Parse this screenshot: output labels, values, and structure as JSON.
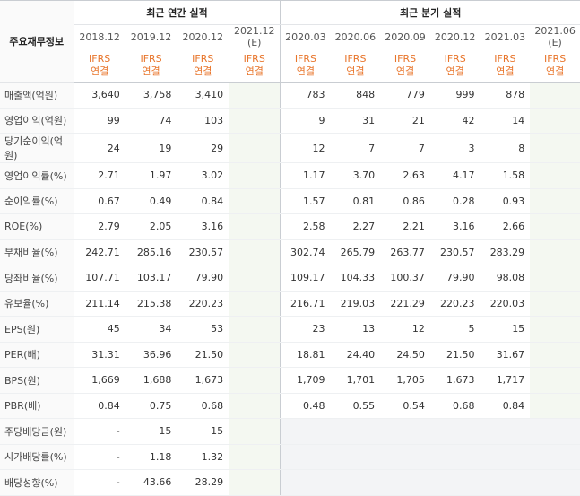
{
  "header": {
    "row_label": "주요재무정보",
    "annual_title": "최근 연간 실적",
    "quarter_title": "최근 분기 실적",
    "annual_periods": [
      "2018.12",
      "2019.12",
      "2020.12",
      "2021.12"
    ],
    "annual_estimate_marker": "(E)",
    "quarter_periods": [
      "2020.03",
      "2020.06",
      "2020.09",
      "2020.12",
      "2021.03",
      "2021.06"
    ],
    "quarter_estimate_marker": "(E)",
    "basis_line1": "IFRS",
    "basis_line2": "연결"
  },
  "rows": [
    {
      "label": "매출액(억원)",
      "annual": [
        "3,640",
        "3,758",
        "3,410",
        ""
      ],
      "quarter": [
        "783",
        "848",
        "779",
        "999",
        "878",
        ""
      ]
    },
    {
      "label": "영업이익(억원)",
      "annual": [
        "99",
        "74",
        "103",
        ""
      ],
      "quarter": [
        "9",
        "31",
        "21",
        "42",
        "14",
        ""
      ]
    },
    {
      "label": "당기순이익(억원)",
      "annual": [
        "24",
        "19",
        "29",
        ""
      ],
      "quarter": [
        "12",
        "7",
        "7",
        "3",
        "8",
        ""
      ]
    },
    {
      "label": "영업이익률(%)",
      "annual": [
        "2.71",
        "1.97",
        "3.02",
        ""
      ],
      "quarter": [
        "1.17",
        "3.70",
        "2.63",
        "4.17",
        "1.58",
        ""
      ]
    },
    {
      "label": "순이익률(%)",
      "annual": [
        "0.67",
        "0.49",
        "0.84",
        ""
      ],
      "quarter": [
        "1.57",
        "0.81",
        "0.86",
        "0.28",
        "0.93",
        ""
      ]
    },
    {
      "label": "ROE(%)",
      "annual": [
        "2.79",
        "2.05",
        "3.16",
        ""
      ],
      "quarter": [
        "2.58",
        "2.27",
        "2.21",
        "3.16",
        "2.66",
        ""
      ]
    },
    {
      "label": "부채비율(%)",
      "annual": [
        "242.71",
        "285.16",
        "230.57",
        ""
      ],
      "quarter": [
        "302.74",
        "265.79",
        "263.77",
        "230.57",
        "283.29",
        ""
      ]
    },
    {
      "label": "당좌비율(%)",
      "annual": [
        "107.71",
        "103.17",
        "79.90",
        ""
      ],
      "quarter": [
        "109.17",
        "104.33",
        "100.37",
        "79.90",
        "98.08",
        ""
      ]
    },
    {
      "label": "유보율(%)",
      "annual": [
        "211.14",
        "215.38",
        "220.23",
        ""
      ],
      "quarter": [
        "216.71",
        "219.03",
        "221.29",
        "220.23",
        "220.03",
        ""
      ]
    },
    {
      "label": "EPS(원)",
      "annual": [
        "45",
        "34",
        "53",
        ""
      ],
      "quarter": [
        "23",
        "13",
        "12",
        "5",
        "15",
        ""
      ]
    },
    {
      "label": "PER(배)",
      "annual": [
        "31.31",
        "36.96",
        "21.50",
        ""
      ],
      "quarter": [
        "18.81",
        "24.40",
        "24.50",
        "21.50",
        "31.67",
        ""
      ]
    },
    {
      "label": "BPS(원)",
      "annual": [
        "1,669",
        "1,688",
        "1,673",
        ""
      ],
      "quarter": [
        "1,709",
        "1,701",
        "1,705",
        "1,673",
        "1,717",
        ""
      ]
    },
    {
      "label": "PBR(배)",
      "annual": [
        "0.84",
        "0.75",
        "0.68",
        ""
      ],
      "quarter": [
        "0.48",
        "0.55",
        "0.54",
        "0.68",
        "0.84",
        ""
      ]
    },
    {
      "label": "주당배당금(원)",
      "annual": [
        "-",
        "15",
        "15",
        ""
      ],
      "quarter": [
        "",
        "",
        "",
        "",
        "",
        ""
      ]
    },
    {
      "label": "시가배당률(%)",
      "annual": [
        "-",
        "1.18",
        "1.32",
        ""
      ],
      "quarter": [
        "",
        "",
        "",
        "",
        "",
        ""
      ]
    },
    {
      "label": "배당성향(%)",
      "annual": [
        "-",
        "43.66",
        "28.29",
        ""
      ],
      "quarter": [
        "",
        "",
        "",
        "",
        "",
        ""
      ]
    }
  ],
  "theme": {
    "ifrs_color": "#e8752b",
    "estimate_color": "#3a8a3a",
    "estimate_column_bg": "#f4f8f1",
    "empty_bg": "#f3f4f6"
  }
}
